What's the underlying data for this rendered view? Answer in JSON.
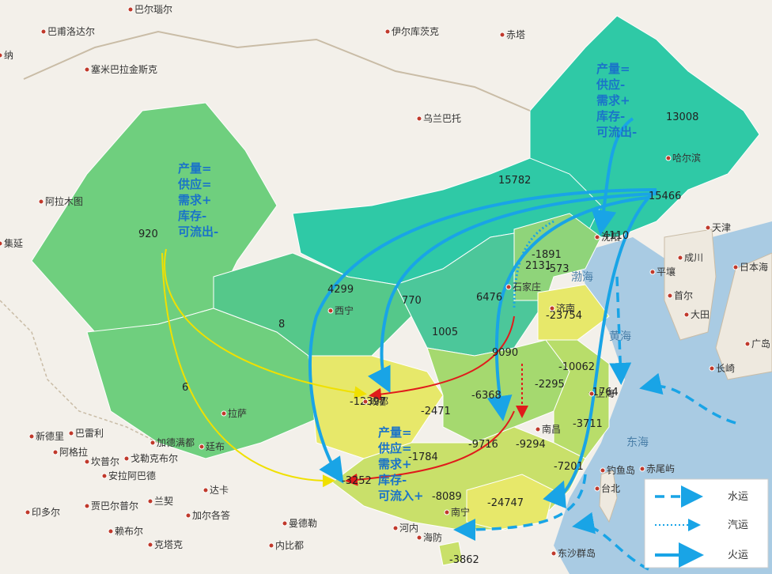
{
  "map_labels": {
    "cities": [
      "巴尔瑙尔",
      "巴甫洛达尔",
      "伊尔库茨克",
      "赤塔",
      "塞米巴拉金斯克",
      "乌兰巴托",
      "阿拉木图",
      "集延",
      "新德里",
      "巴雷利",
      "阿格拉",
      "坎普尔",
      "安拉阿巴德",
      "戈勒克布尔",
      "加德满都",
      "廷布",
      "达卡",
      "加尔各答",
      "印多尔",
      "贾巴尔普尔",
      "兰契",
      "赖布尔",
      "克塔克",
      "曼德勒",
      "内比都",
      "河内",
      "海防",
      "哈尔滨",
      "沈阳",
      "天津",
      "成川",
      "平壤",
      "首尔",
      "大田",
      "广岛",
      "长崎",
      "台北",
      "钓鱼岛",
      "赤尾屿",
      "东沙群岛",
      "拉萨",
      "西宁",
      "成都",
      "南宁",
      "南昌",
      "济南",
      "上海",
      "石家庄",
      "日本海",
      "纳"
    ],
    "seas": [
      "渤海",
      "黄海",
      "东海"
    ],
    "province_values": [
      "13008",
      "15782",
      "15466",
      "920",
      "4110",
      "-1891",
      "2131",
      "-573",
      "4299",
      "770",
      "6476",
      "8",
      "1005",
      "-23754",
      "9090",
      "-10062",
      "-6368",
      "-2295",
      "-1764",
      "6",
      "-12397",
      "-2471",
      "-3711",
      "-9716",
      "-9294",
      "-1784",
      "-7201",
      "-3252",
      "-8089",
      "-24747",
      "-3862"
    ]
  },
  "annotations": {
    "northeast": [
      "产量=",
      "供应-",
      "需求+",
      "库存-",
      "可流出-"
    ],
    "northwest": [
      "产量=",
      "供应=",
      "需求+",
      "库存-",
      "可流出-"
    ],
    "southwest": [
      "产量=",
      "供应=",
      "需求+",
      "库存-",
      "可流入+"
    ]
  },
  "legend": {
    "items": [
      {
        "label": "水运",
        "style": "dashed"
      },
      {
        "label": "汽运",
        "style": "dotted"
      },
      {
        "label": "火运",
        "style": "solid"
      }
    ]
  },
  "colors": {
    "rail": "#19a4e6",
    "northwest_flow": "#f5f01f",
    "south_flow": "#e01b1b",
    "high_supply": "#2fc9a6",
    "mid_supply": "#7fd17a",
    "deficit": "#e7e86a",
    "sea": "#a9cbe3"
  }
}
